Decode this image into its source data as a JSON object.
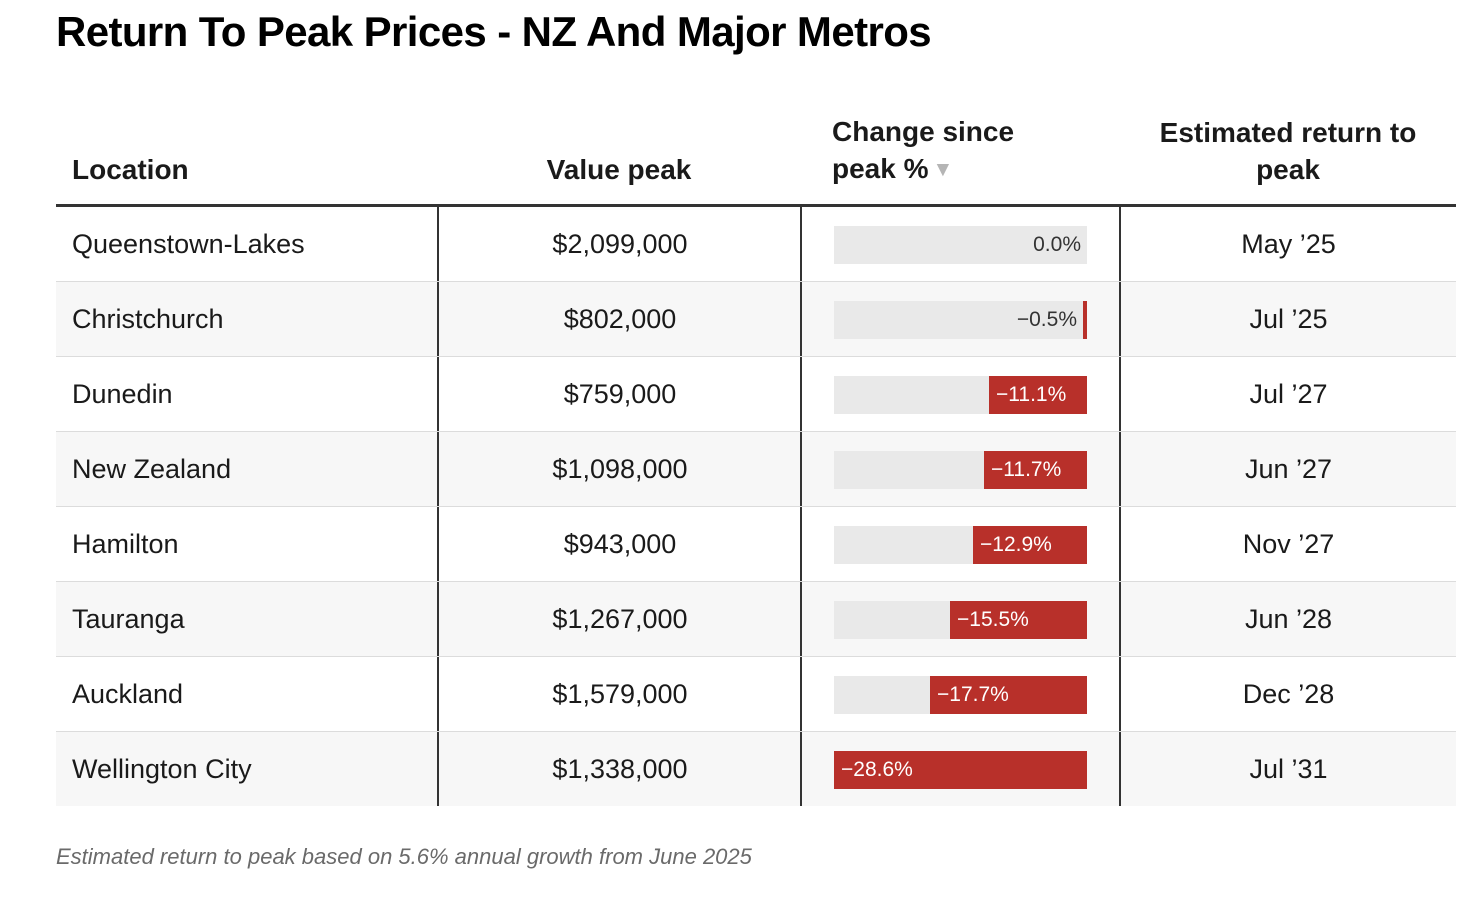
{
  "title": "Return To Peak Prices - NZ And Major Metros",
  "columns": {
    "location": "Location",
    "value_peak": "Value peak",
    "change_line1": "Change since",
    "change_line2": "peak %",
    "return_line1": "Estimated return to",
    "return_line2": "peak"
  },
  "sort_icon": "sort-descending-icon",
  "footnote": "Estimated return to peak based on 5.6% annual growth from June 2025",
  "colors": {
    "bar_negative": "#b8302a",
    "bar_track": "#e9e9e9"
  },
  "chart_data": {
    "type": "table",
    "title": "Return To Peak Prices - NZ And Major Metros",
    "sorted_by": "Change since peak %",
    "change_range": [
      -28.6,
      0
    ],
    "rows": [
      {
        "location": "Queenstown-Lakes",
        "value_peak": "$2,099,000",
        "change": 0.0,
        "change_label": "0.0%",
        "return": "May ’25"
      },
      {
        "location": "Christchurch",
        "value_peak": "$802,000",
        "change": -0.5,
        "change_label": "−0.5%",
        "return": "Jul ’25"
      },
      {
        "location": "Dunedin",
        "value_peak": "$759,000",
        "change": -11.1,
        "change_label": "−11.1%",
        "return": "Jul ’27"
      },
      {
        "location": "New Zealand",
        "value_peak": "$1,098,000",
        "change": -11.7,
        "change_label": "−11.7%",
        "return": "Jun ’27"
      },
      {
        "location": "Hamilton",
        "value_peak": "$943,000",
        "change": -12.9,
        "change_label": "−12.9%",
        "return": "Nov ’27"
      },
      {
        "location": "Tauranga",
        "value_peak": "$1,267,000",
        "change": -15.5,
        "change_label": "−15.5%",
        "return": "Jun ’28"
      },
      {
        "location": "Auckland",
        "value_peak": "$1,579,000",
        "change": -17.7,
        "change_label": "−17.7%",
        "return": "Dec ’28"
      },
      {
        "location": "Wellington City",
        "value_peak": "$1,338,000",
        "change": -28.6,
        "change_label": "−28.6%",
        "return": "Jul ’31"
      }
    ]
  }
}
